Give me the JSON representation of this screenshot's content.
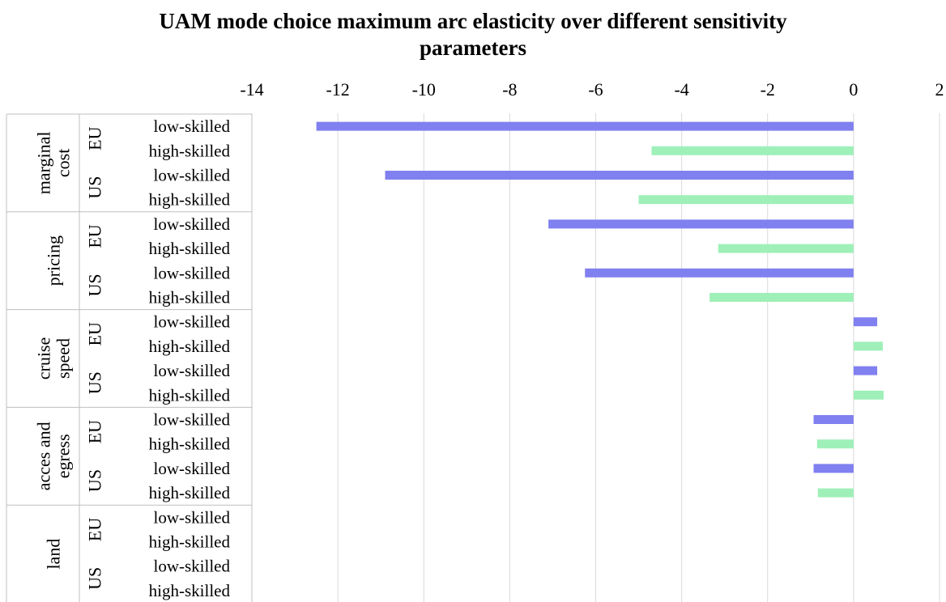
{
  "chart_data": {
    "type": "bar",
    "orientation": "horizontal",
    "title_lines": [
      "UAM mode choice maximum arc elasticity over different sensitivity",
      "parameters"
    ],
    "xlabel": "",
    "ylabel": "",
    "xlim": [
      -14,
      2
    ],
    "x_ticks": [
      "-14",
      "-12",
      "-10",
      "-8",
      "-6",
      "-4",
      "-2",
      "0",
      "2"
    ],
    "grid": "vertical",
    "legend": "none",
    "colors": {
      "low-skilled": "#8080f0",
      "high-skilled": "#9ef0b8",
      "grid": "#d9d9d9",
      "separator": "#bfbfbf"
    },
    "parameters": [
      {
        "name_lines": [
          "marginal",
          "cost"
        ],
        "groups": [
          {
            "region": "EU",
            "rows": [
              {
                "label": "low-skilled",
                "value": -12.5
              },
              {
                "label": "high-skilled",
                "value": -4.7
              }
            ]
          },
          {
            "region": "US",
            "rows": [
              {
                "label": "low-skilled",
                "value": -10.9
              },
              {
                "label": "high-skilled",
                "value": -5.0
              }
            ]
          }
        ]
      },
      {
        "name_lines": [
          "pricing"
        ],
        "groups": [
          {
            "region": "EU",
            "rows": [
              {
                "label": "low-skilled",
                "value": -7.1
              },
              {
                "label": "high-skilled",
                "value": -3.15
              }
            ]
          },
          {
            "region": "US",
            "rows": [
              {
                "label": "low-skilled",
                "value": -6.25
              },
              {
                "label": "high-skilled",
                "value": -3.35
              }
            ]
          }
        ]
      },
      {
        "name_lines": [
          "cruise",
          "speed"
        ],
        "groups": [
          {
            "region": "EU",
            "rows": [
              {
                "label": "low-skilled",
                "value": 0.55
              },
              {
                "label": "high-skilled",
                "value": 0.68
              }
            ]
          },
          {
            "region": "US",
            "rows": [
              {
                "label": "low-skilled",
                "value": 0.55
              },
              {
                "label": "high-skilled",
                "value": 0.7
              }
            ]
          }
        ]
      },
      {
        "name_lines": [
          "acces and",
          "egress"
        ],
        "groups": [
          {
            "region": "EU",
            "rows": [
              {
                "label": "low-skilled",
                "value": -0.93
              },
              {
                "label": "high-skilled",
                "value": -0.85
              }
            ]
          },
          {
            "region": "US",
            "rows": [
              {
                "label": "low-skilled",
                "value": -0.93
              },
              {
                "label": "high-skilled",
                "value": -0.83
              }
            ]
          }
        ]
      },
      {
        "name_lines": [
          "land"
        ],
        "groups": [
          {
            "region": "EU",
            "rows": [
              {
                "label": "low-skilled",
                "value": 0
              },
              {
                "label": "high-skilled",
                "value": 0
              }
            ]
          },
          {
            "region": "US",
            "rows": [
              {
                "label": "low-skilled",
                "value": 0
              },
              {
                "label": "high-skilled",
                "value": 0
              }
            ]
          }
        ]
      }
    ]
  }
}
